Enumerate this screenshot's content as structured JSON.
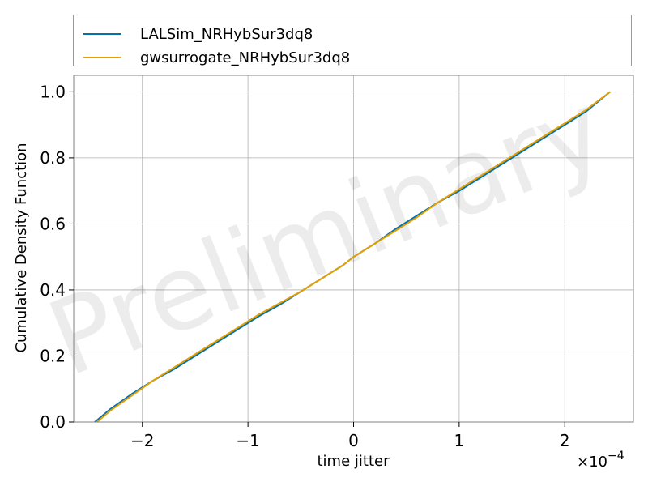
{
  "chart_data": {
    "type": "line",
    "title": "",
    "xlabel": "time jitter",
    "ylabel": "Cumulative Density Function",
    "x_scale_label": "×10",
    "x_scale_exponent": "−4",
    "watermark": "Preliminary",
    "xlim": [
      -2.65,
      2.65
    ],
    "ylim": [
      0.0,
      1.05
    ],
    "grid": true,
    "legend_position": "top, above plot",
    "x_ticks": [
      -2,
      -1,
      0,
      1,
      2
    ],
    "x_tick_labels": [
      "−2",
      "−1",
      "0",
      "1",
      "2"
    ],
    "y_ticks": [
      0.0,
      0.2,
      0.4,
      0.6,
      0.8,
      1.0
    ],
    "y_tick_labels": [
      "0.0",
      "0.2",
      "0.4",
      "0.6",
      "0.8",
      "1.0"
    ],
    "series": [
      {
        "name": "LALSim_NRHybSur3dq8",
        "color": "#0072B2",
        "x": [
          -2.45,
          -2.3,
          -2.1,
          -1.9,
          -1.7,
          -1.5,
          -1.3,
          -1.1,
          -0.9,
          -0.7,
          -0.5,
          -0.3,
          -0.1,
          0.0,
          0.2,
          0.4,
          0.6,
          0.8,
          1.0,
          1.2,
          1.4,
          1.6,
          1.8,
          2.0,
          2.2,
          2.43
        ],
        "y": [
          0.0,
          0.04,
          0.085,
          0.125,
          0.16,
          0.2,
          0.24,
          0.28,
          0.32,
          0.355,
          0.395,
          0.435,
          0.475,
          0.5,
          0.54,
          0.585,
          0.625,
          0.665,
          0.7,
          0.74,
          0.78,
          0.82,
          0.86,
          0.9,
          0.94,
          1.0
        ]
      },
      {
        "name": "gwsurrogate_NRHybSur3dq8",
        "color": "#E69F00",
        "x": [
          -2.43,
          -2.3,
          -2.1,
          -1.9,
          -1.7,
          -1.5,
          -1.3,
          -1.1,
          -0.9,
          -0.7,
          -0.5,
          -0.3,
          -0.1,
          0.0,
          0.2,
          0.4,
          0.6,
          0.8,
          1.0,
          1.2,
          1.4,
          1.6,
          1.8,
          2.0,
          2.2,
          2.43
        ],
        "y": [
          0.0,
          0.035,
          0.08,
          0.125,
          0.165,
          0.205,
          0.245,
          0.285,
          0.325,
          0.36,
          0.395,
          0.435,
          0.475,
          0.5,
          0.54,
          0.58,
          0.62,
          0.665,
          0.705,
          0.745,
          0.785,
          0.825,
          0.865,
          0.905,
          0.945,
          1.0
        ]
      }
    ]
  }
}
